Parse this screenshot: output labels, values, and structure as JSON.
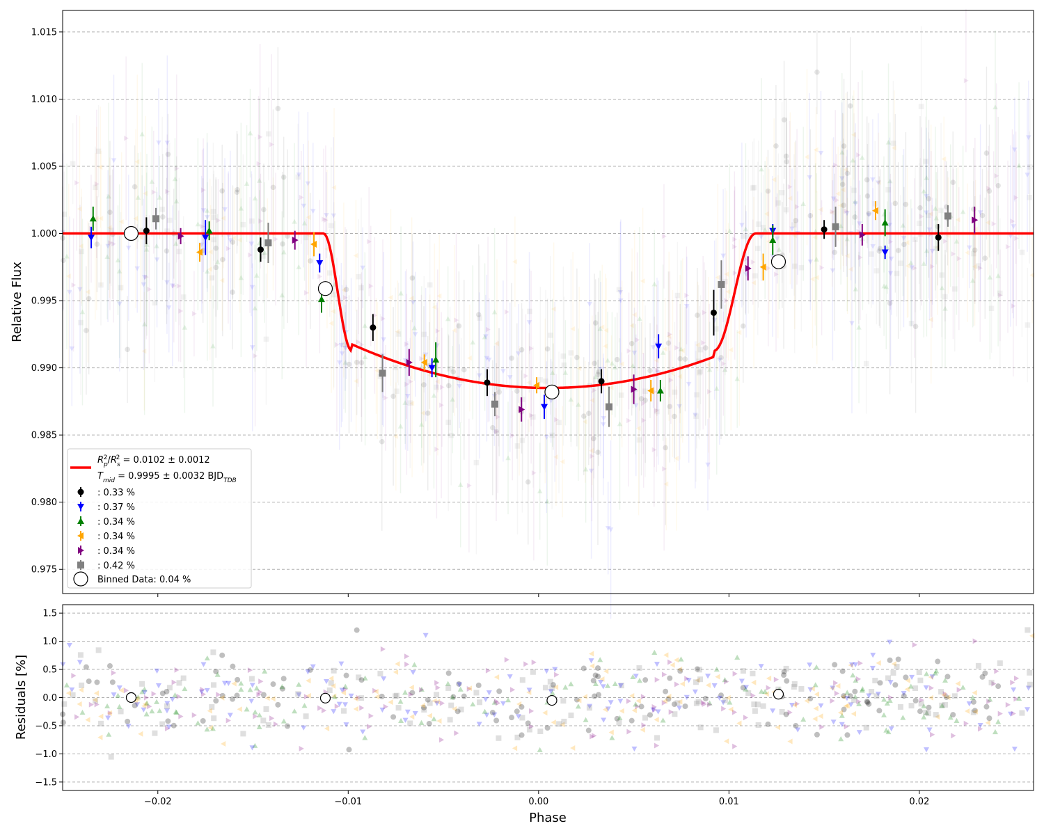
{
  "chart_data": [
    {
      "type": "scatter",
      "panel": "light-curve",
      "xlabel": "Phase",
      "ylabel": "Relative Flux",
      "xlim": [
        -0.025,
        0.026
      ],
      "ylim": [
        0.9732,
        1.0166
      ],
      "grid": "horizontal-dashed",
      "xticks": [
        {
          "v": -0.02,
          "label": "−0.02"
        },
        {
          "v": -0.01,
          "label": "−0.01"
        },
        {
          "v": 0.0,
          "label": "0.00"
        },
        {
          "v": 0.01,
          "label": "0.01"
        },
        {
          "v": 0.02,
          "label": "0.02"
        }
      ],
      "yticks": [
        {
          "v": 0.975,
          "label": "0.975"
        },
        {
          "v": 0.98,
          "label": "0.980"
        },
        {
          "v": 0.985,
          "label": "0.985"
        },
        {
          "v": 0.99,
          "label": "0.990"
        },
        {
          "v": 0.995,
          "label": "0.995"
        },
        {
          "v": 1.0,
          "label": "1.000"
        },
        {
          "v": 1.005,
          "label": "1.005"
        },
        {
          "v": 1.01,
          "label": "1.010"
        },
        {
          "v": 1.015,
          "label": "1.015"
        }
      ],
      "model": {
        "name": "transit model",
        "color": "#ff0000",
        "depth": 0.0115,
        "ingress_start": -0.0113,
        "ingress_end": -0.0098,
        "egress_start": 0.0092,
        "egress_end": 0.0114,
        "center": 0.0005
      },
      "series": [
        {
          "name": ": 0.33 %",
          "color": "#000000",
          "marker": "circle",
          "x": [
            -0.0206,
            -0.0146,
            -0.0087,
            -0.0027,
            0.0033,
            0.0092,
            0.015,
            0.021
          ],
          "y": [
            1.0002,
            0.9988,
            0.993,
            0.9889,
            0.989,
            0.9941,
            1.0003,
            0.9997
          ],
          "err": [
            0.001,
            0.0009,
            0.001,
            0.001,
            0.0009,
            0.0017,
            0.0007,
            0.001
          ]
        },
        {
          "name": ": 0.37 %",
          "color": "#0000ff",
          "marker": "triangle-down",
          "x": [
            -0.0235,
            -0.0175,
            -0.0115,
            -0.0056,
            0.0003,
            0.0063,
            0.0123,
            0.0182
          ],
          "y": [
            0.9997,
            0.9997,
            0.9978,
            0.99,
            0.9871,
            0.9916,
            1.0002,
            0.9986
          ],
          "err": [
            0.0008,
            0.0013,
            0.0007,
            0.0007,
            0.0009,
            0.0009,
            0.0005,
            0.0005
          ]
        },
        {
          "name": ": 0.34 %",
          "color": "#008000",
          "marker": "triangle-up",
          "x": [
            -0.0234,
            -0.0173,
            -0.0114,
            -0.0054,
            0.0064,
            0.0123,
            0.0182
          ],
          "y": [
            1.0011,
            1.0002,
            0.9951,
            0.9906,
            0.9883,
            0.9995,
            1.0008
          ],
          "err": [
            0.0009,
            0.0007,
            0.001,
            0.0013,
            0.0008,
            0.0011,
            0.001
          ]
        },
        {
          "name": ": 0.34 %",
          "color": "#ffa500",
          "marker": "triangle-left",
          "x": [
            -0.0178,
            -0.0118,
            -0.006,
            -0.0001,
            0.0059,
            0.0118,
            0.0177
          ],
          "y": [
            0.9986,
            0.9992,
            0.9904,
            0.9887,
            0.9883,
            0.9975,
            1.0017
          ],
          "err": [
            0.0007,
            0.0009,
            0.0006,
            0.0006,
            0.0008,
            0.001,
            0.0007
          ]
        },
        {
          "name": ": 0.34 %",
          "color": "#800080",
          "marker": "triangle-right",
          "x": [
            -0.0188,
            -0.0128,
            -0.0068,
            -0.0009,
            0.005,
            0.011,
            0.017,
            0.0229
          ],
          "y": [
            0.9998,
            0.9995,
            0.9904,
            0.9869,
            0.9884,
            0.9974,
            0.9999,
            1.001
          ],
          "err": [
            0.0006,
            0.0007,
            0.001,
            0.0009,
            0.0011,
            0.0009,
            0.0008,
            0.001
          ]
        },
        {
          "name": ": 0.42 %",
          "color": "#808080",
          "marker": "square",
          "x": [
            -0.0201,
            -0.0142,
            -0.0082,
            -0.0023,
            0.0037,
            0.0096,
            0.0156,
            0.0215
          ],
          "y": [
            1.0011,
            0.9993,
            0.9896,
            0.9873,
            0.9871,
            0.9962,
            1.0005,
            1.0013
          ],
          "err": [
            0.0008,
            0.0015,
            0.0014,
            0.0009,
            0.0015,
            0.0018,
            0.0015,
            0.0008
          ]
        }
      ],
      "binned": {
        "name": "Binned Data: 0.04 %",
        "x": [
          -0.0214,
          -0.0112,
          0.0007,
          0.0126
        ],
        "y": [
          1.0,
          0.9959,
          0.9882,
          0.9979
        ]
      },
      "legend": {
        "position": "lower-left",
        "model_line1_prefix": "R",
        "model_line1_suffix": " = 0.0102 ± 0.0012",
        "model_line2_prefix": "T",
        "model_line2_mid": " = 0.9995 ± 0.0032 BJD",
        "sub_p": "p",
        "sub_s": "s",
        "sup_2": "2",
        "sub_mid": "mid",
        "sub_tdb": "TDB",
        "slash": "/"
      }
    },
    {
      "type": "scatter",
      "panel": "residuals",
      "xlabel": "Phase",
      "ylabel": "Residuals [%]",
      "xlim": [
        -0.025,
        0.026
      ],
      "ylim": [
        -1.65,
        1.65
      ],
      "grid": "horizontal-dashed",
      "yticks": [
        {
          "v": -1.5,
          "label": "−1.5"
        },
        {
          "v": -1.0,
          "label": "−1.0"
        },
        {
          "v": -0.5,
          "label": "−0.5"
        },
        {
          "v": 0.0,
          "label": "0.0"
        },
        {
          "v": 0.5,
          "label": "0.5"
        },
        {
          "v": 1.0,
          "label": "1.0"
        },
        {
          "v": 1.5,
          "label": "1.5"
        }
      ],
      "binned": {
        "x": [
          -0.0214,
          -0.0112,
          0.0007,
          0.0126
        ],
        "y": [
          0.0,
          -0.01,
          -0.05,
          0.06
        ]
      }
    }
  ]
}
